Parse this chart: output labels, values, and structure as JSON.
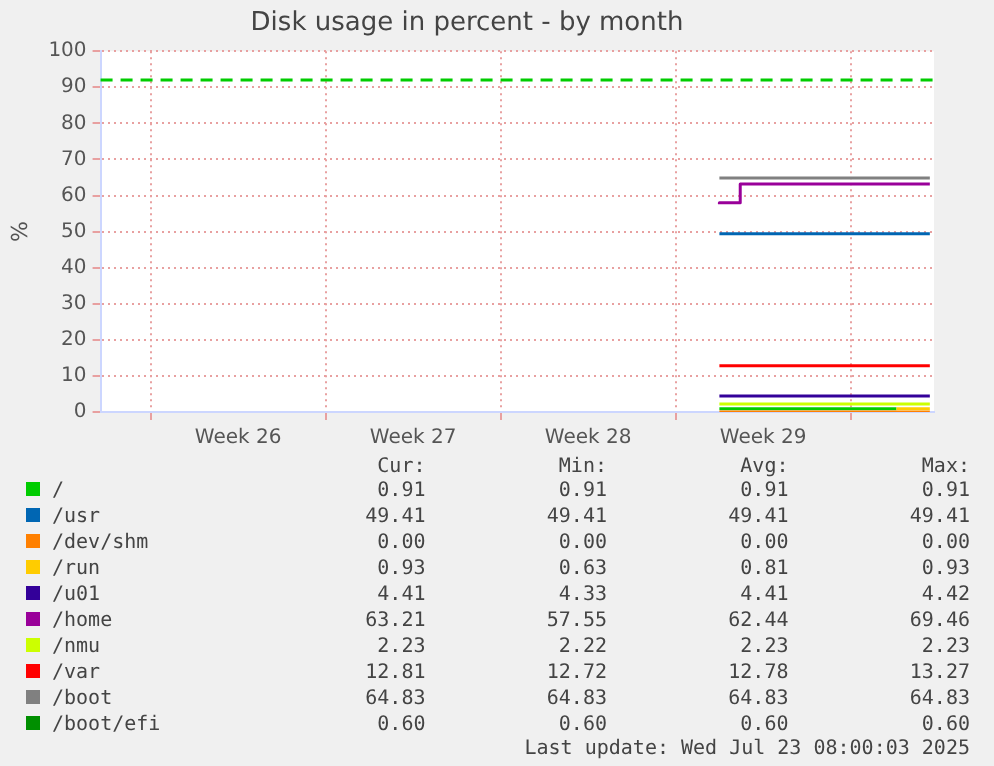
{
  "chart_data": {
    "type": "line",
    "title": "Disk usage in percent - by month",
    "ylabel": "%",
    "xlim": [
      "2025-06-21",
      "2025-07-24T08:00"
    ],
    "xticks": [
      {
        "value": "2025-06-23",
        "label": null
      },
      {
        "value": "2025-06-26T12:00",
        "label": "Week 26"
      },
      {
        "value": "2025-06-30",
        "label": null
      },
      {
        "value": "2025-07-03T12:00",
        "label": "Week 27"
      },
      {
        "value": "2025-07-07",
        "label": null
      },
      {
        "value": "2025-07-10T12:00",
        "label": "Week 28"
      },
      {
        "value": "2025-07-14",
        "label": null
      },
      {
        "value": "2025-07-17T12:00",
        "label": "Week 29"
      },
      {
        "value": "2025-07-21",
        "label": null
      }
    ],
    "ylim": [
      0,
      100
    ],
    "yticks": [
      0,
      10,
      20,
      30,
      40,
      50,
      60,
      70,
      80,
      90,
      100
    ],
    "grid": true,
    "legend": "bottom",
    "ref_lines": [
      {
        "axis": "y",
        "value": 92,
        "color": "#00cc00",
        "line_style": "dashed"
      }
    ],
    "series": [
      {
        "name": "/",
        "color": "#00cc00",
        "x": [
          "2025-07-15T18:00",
          "2025-07-22T20:00"
        ],
        "values": [
          0.91,
          0.91
        ]
      },
      {
        "name": "/usr",
        "color": "#0066b3",
        "x": [
          "2025-07-15T18:00",
          "2025-07-24T04:00"
        ],
        "values": [
          49.41,
          49.41
        ]
      },
      {
        "name": "/dev/shm",
        "color": "#ff8000",
        "x": [
          "2025-07-15T18:00",
          "2025-07-24T04:00"
        ],
        "values": [
          0,
          0
        ]
      },
      {
        "name": "/run",
        "color": "#ffcc00",
        "x": [
          "2025-07-22T20:00",
          "2025-07-24T04:00"
        ],
        "values": [
          0.93,
          0.93
        ]
      },
      {
        "name": "/u01",
        "color": "#330099",
        "x": [
          "2025-07-15T18:00",
          "2025-07-24T04:00"
        ],
        "values": [
          4.41,
          4.41
        ]
      },
      {
        "name": "/home",
        "color": "#990099",
        "type": "step",
        "x": [
          "2025-07-15T18:00",
          "2025-07-16T14:00",
          "2025-07-17T00:00",
          "2025-07-24T04:00"
        ],
        "values": [
          57.55,
          58,
          63.21,
          63.21
        ]
      },
      {
        "name": "/nmu",
        "color": "#ccff00",
        "x": [
          "2025-07-15T18:00",
          "2025-07-24T04:00"
        ],
        "values": [
          2.23,
          2.23
        ]
      },
      {
        "name": "/var",
        "color": "#ff0000",
        "x": [
          "2025-07-15T18:00",
          "2025-07-24T04:00"
        ],
        "values": [
          12.81,
          12.81
        ]
      },
      {
        "name": "/boot",
        "color": "#808080",
        "x": [
          "2025-07-15T18:00",
          "2025-07-24T04:00"
        ],
        "values": [
          64.83,
          64.83
        ]
      },
      {
        "name": "/boot/efi",
        "color": "#008f00"
      }
    ],
    "annotations": [
      "Cur:",
      "Min:",
      "Avg:",
      "Max:",
      "0.91",
      "0.91",
      "0.91",
      "0.91",
      "49.41",
      "49.41",
      "49.41",
      "49.41",
      "0.00",
      "0.00",
      "0.00",
      "0.00",
      "0.93",
      "0.63",
      "0.81",
      "0.93",
      "4.41",
      "4.33",
      "4.41",
      "4.42",
      "63.21",
      "57.55",
      "62.44",
      "69.46",
      "2.23",
      "2.22",
      "2.23",
      "2.23",
      "12.81",
      "12.72",
      "12.78",
      "13.27",
      "64.83",
      "64.83",
      "64.83",
      "64.83",
      "0.60",
      "0.60",
      "0.60",
      "0.60",
      "Last update: Wed Jul 23 08:00:03 2025"
    ]
  }
}
